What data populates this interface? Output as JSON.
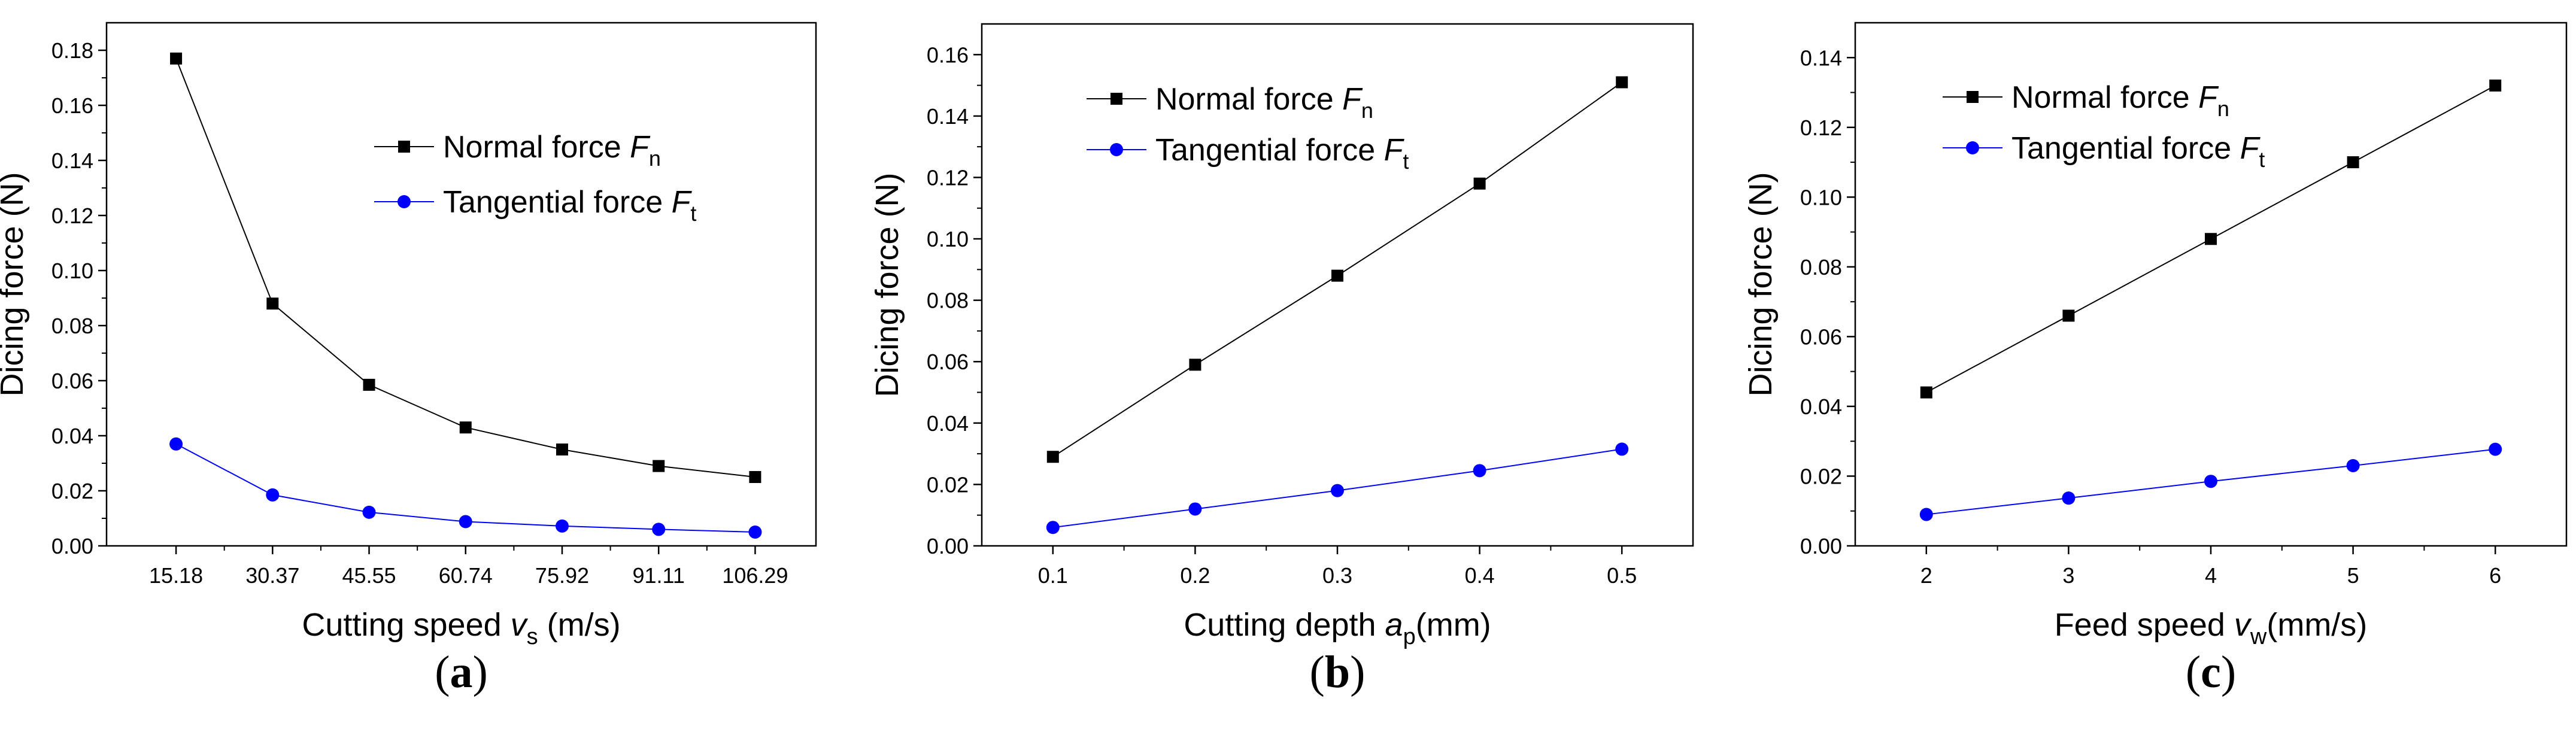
{
  "chart_data": [
    {
      "type": "line",
      "panel_label": "a",
      "xlabel": {
        "main": "Cutting speed ",
        "italic": "v",
        "sub": "s",
        "post": " (m/s)"
      },
      "ylabel": "Dicing force (N)",
      "categories": [
        "15.18",
        "30.37",
        "45.55",
        "60.74",
        "75.92",
        "91.11",
        "106.29"
      ],
      "ylim": [
        0,
        0.19
      ],
      "yticks": [
        "0.00",
        "0.02",
        "0.04",
        "0.06",
        "0.08",
        "0.10",
        "0.12",
        "0.14",
        "0.16",
        "0.18"
      ],
      "legend_position": "upper-right",
      "series": [
        {
          "name": "Normal force",
          "sym": "F",
          "sub": "n",
          "color": "#000000",
          "marker": "square",
          "values": [
            0.177,
            0.088,
            0.0585,
            0.043,
            0.035,
            0.029,
            0.025
          ]
        },
        {
          "name": "Tangential force",
          "sym": "F",
          "sub": "t",
          "color": "#0000ff",
          "marker": "circle",
          "values": [
            0.037,
            0.0185,
            0.0122,
            0.0088,
            0.0072,
            0.006,
            0.005
          ]
        }
      ]
    },
    {
      "type": "line",
      "panel_label": "b",
      "xlabel": {
        "main": "Cutting depth ",
        "italic": "a",
        "sub": "p",
        "post": "(mm)"
      },
      "ylabel": "Dicing force (N)",
      "x": [
        0.1,
        0.2,
        0.3,
        0.4,
        0.5
      ],
      "xticks": [
        "0.1",
        "0.2",
        "0.3",
        "0.4",
        "0.5"
      ],
      "xlim": [
        0.05,
        0.55
      ],
      "ylim": [
        0,
        0.17
      ],
      "yticks": [
        "0.00",
        "0.02",
        "0.04",
        "0.06",
        "0.08",
        "0.10",
        "0.12",
        "0.14",
        "0.16"
      ],
      "legend_position": "upper-left",
      "series": [
        {
          "name": "Normal force",
          "sym": "F",
          "sub": "n",
          "color": "#000000",
          "marker": "square",
          "values": [
            0.029,
            0.059,
            0.088,
            0.118,
            0.151
          ]
        },
        {
          "name": "Tangential force",
          "sym": "F",
          "sub": "t",
          "color": "#0000ff",
          "marker": "circle",
          "values": [
            0.006,
            0.012,
            0.018,
            0.0245,
            0.0315
          ]
        }
      ]
    },
    {
      "type": "line",
      "panel_label": "c",
      "xlabel": {
        "main": "Feed speed ",
        "italic": "v",
        "sub": "w",
        "post": "(mm/s)"
      },
      "ylabel": "Dicing force (N)",
      "x": [
        2,
        3,
        4,
        5,
        6
      ],
      "xticks": [
        "2",
        "3",
        "4",
        "5",
        "6"
      ],
      "xlim": [
        1.5,
        6.5
      ],
      "ylim": [
        0,
        0.15
      ],
      "yticks": [
        "0.00",
        "0.02",
        "0.04",
        "0.06",
        "0.08",
        "0.10",
        "0.12",
        "0.14"
      ],
      "legend_position": "upper-left",
      "series": [
        {
          "name": "Normal force",
          "sym": "F",
          "sub": "n",
          "color": "#000000",
          "marker": "square",
          "values": [
            0.044,
            0.066,
            0.088,
            0.11,
            0.132
          ]
        },
        {
          "name": "Tangential force",
          "sym": "F",
          "sub": "t",
          "color": "#0000ff",
          "marker": "circle",
          "values": [
            0.009,
            0.0137,
            0.0185,
            0.023,
            0.0277
          ]
        }
      ]
    }
  ]
}
